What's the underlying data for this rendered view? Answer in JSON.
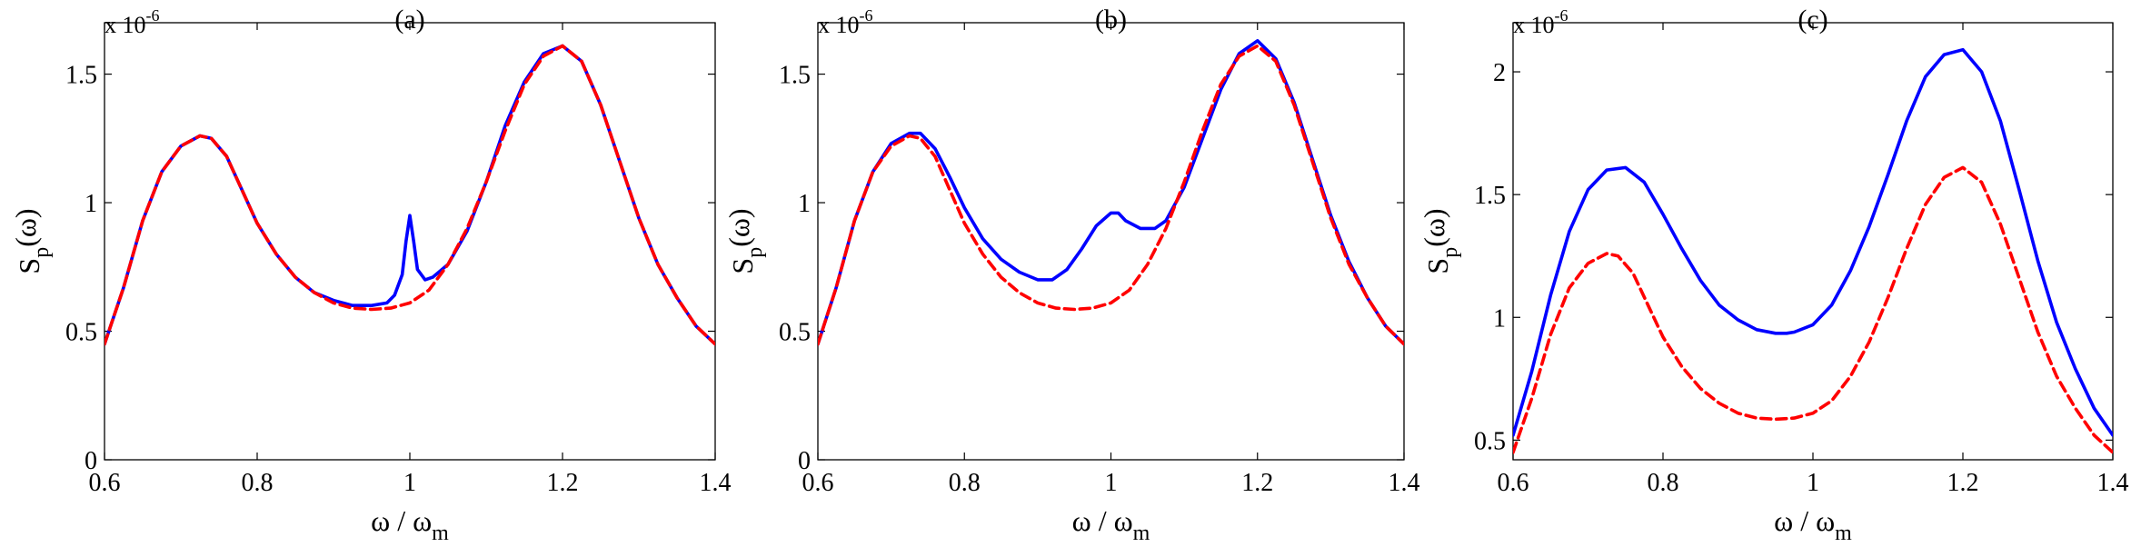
{
  "chart_data": [
    {
      "type": "line",
      "title": "(a)",
      "exponent_label": "x 10",
      "exponent_power": "-6",
      "xlabel_main": "ω / ω",
      "xlabel_sub": "m",
      "ylabel_main": "S",
      "ylabel_sub": "p",
      "ylabel_arg": "(ω)",
      "xlim": [
        0.6,
        1.4
      ],
      "ylim": [
        0,
        1.7
      ],
      "xticks": [
        0.6,
        0.8,
        1,
        1.2,
        1.4
      ],
      "xtick_labels": [
        "0.6",
        "0.8",
        "1",
        "1.2",
        "1.4"
      ],
      "yticks": [
        0,
        0.5,
        1,
        1.5
      ],
      "ytick_labels": [
        "0",
        "0.5",
        "1",
        "1.5"
      ],
      "grid": false,
      "series": [
        {
          "color": "#0000ff",
          "style": "solid",
          "x": [
            0.6,
            0.625,
            0.65,
            0.675,
            0.7,
            0.725,
            0.74,
            0.76,
            0.78,
            0.8,
            0.825,
            0.85,
            0.875,
            0.9,
            0.925,
            0.95,
            0.97,
            0.98,
            0.99,
            0.995,
            1.0,
            1.005,
            1.01,
            1.02,
            1.03,
            1.05,
            1.075,
            1.1,
            1.125,
            1.15,
            1.175,
            1.2,
            1.225,
            1.25,
            1.275,
            1.3,
            1.325,
            1.35,
            1.375,
            1.4
          ],
          "y": [
            0.45,
            0.67,
            0.93,
            1.12,
            1.22,
            1.26,
            1.25,
            1.18,
            1.05,
            0.92,
            0.8,
            0.71,
            0.65,
            0.62,
            0.6,
            0.6,
            0.61,
            0.64,
            0.72,
            0.85,
            0.95,
            0.85,
            0.74,
            0.7,
            0.71,
            0.76,
            0.89,
            1.08,
            1.3,
            1.47,
            1.58,
            1.61,
            1.55,
            1.38,
            1.16,
            0.94,
            0.76,
            0.63,
            0.52,
            0.45
          ]
        },
        {
          "color": "#ff0000",
          "style": "dashed",
          "x": [
            0.6,
            0.625,
            0.65,
            0.675,
            0.7,
            0.725,
            0.74,
            0.76,
            0.78,
            0.8,
            0.825,
            0.85,
            0.875,
            0.9,
            0.925,
            0.95,
            0.975,
            1.0,
            1.025,
            1.05,
            1.075,
            1.1,
            1.125,
            1.15,
            1.175,
            1.2,
            1.225,
            1.25,
            1.275,
            1.3,
            1.325,
            1.35,
            1.375,
            1.4
          ],
          "y": [
            0.45,
            0.67,
            0.93,
            1.12,
            1.22,
            1.26,
            1.25,
            1.18,
            1.05,
            0.92,
            0.8,
            0.71,
            0.65,
            0.61,
            0.59,
            0.585,
            0.59,
            0.61,
            0.66,
            0.76,
            0.9,
            1.08,
            1.28,
            1.46,
            1.57,
            1.61,
            1.55,
            1.38,
            1.16,
            0.94,
            0.76,
            0.63,
            0.52,
            0.45
          ]
        }
      ]
    },
    {
      "type": "line",
      "title": "(b)",
      "exponent_label": "x 10",
      "exponent_power": "-6",
      "xlabel_main": "ω / ω",
      "xlabel_sub": "m",
      "ylabel_main": "S",
      "ylabel_sub": "p",
      "ylabel_arg": "(ω)",
      "xlim": [
        0.6,
        1.4
      ],
      "ylim": [
        0,
        1.7
      ],
      "xticks": [
        0.6,
        0.8,
        1,
        1.2,
        1.4
      ],
      "xtick_labels": [
        "0.6",
        "0.8",
        "1",
        "1.2",
        "1.4"
      ],
      "yticks": [
        0,
        0.5,
        1,
        1.5
      ],
      "ytick_labels": [
        "0",
        "0.5",
        "1",
        "1.5"
      ],
      "grid": false,
      "series": [
        {
          "color": "#0000ff",
          "style": "solid",
          "x": [
            0.6,
            0.625,
            0.65,
            0.675,
            0.7,
            0.725,
            0.74,
            0.76,
            0.78,
            0.8,
            0.825,
            0.85,
            0.875,
            0.9,
            0.92,
            0.94,
            0.96,
            0.98,
            1.0,
            1.01,
            1.02,
            1.04,
            1.06,
            1.075,
            1.1,
            1.125,
            1.15,
            1.175,
            1.2,
            1.225,
            1.25,
            1.275,
            1.3,
            1.325,
            1.35,
            1.375,
            1.4
          ],
          "y": [
            0.45,
            0.67,
            0.93,
            1.12,
            1.23,
            1.27,
            1.27,
            1.21,
            1.1,
            0.98,
            0.86,
            0.78,
            0.73,
            0.7,
            0.7,
            0.74,
            0.82,
            0.91,
            0.96,
            0.96,
            0.93,
            0.9,
            0.9,
            0.93,
            1.06,
            1.25,
            1.44,
            1.58,
            1.63,
            1.56,
            1.39,
            1.17,
            0.95,
            0.77,
            0.63,
            0.52,
            0.45
          ]
        },
        {
          "color": "#ff0000",
          "style": "dashed",
          "x": [
            0.6,
            0.625,
            0.65,
            0.675,
            0.7,
            0.725,
            0.74,
            0.76,
            0.78,
            0.8,
            0.825,
            0.85,
            0.875,
            0.9,
            0.925,
            0.95,
            0.975,
            1.0,
            1.025,
            1.05,
            1.075,
            1.1,
            1.125,
            1.15,
            1.175,
            1.2,
            1.225,
            1.25,
            1.275,
            1.3,
            1.325,
            1.35,
            1.375,
            1.4
          ],
          "y": [
            0.45,
            0.67,
            0.93,
            1.12,
            1.22,
            1.26,
            1.25,
            1.18,
            1.05,
            0.92,
            0.8,
            0.71,
            0.65,
            0.61,
            0.59,
            0.585,
            0.59,
            0.61,
            0.66,
            0.76,
            0.9,
            1.08,
            1.28,
            1.46,
            1.57,
            1.61,
            1.55,
            1.38,
            1.16,
            0.94,
            0.76,
            0.63,
            0.52,
            0.45
          ]
        }
      ]
    },
    {
      "type": "line",
      "title": "(c)",
      "exponent_label": "x 10",
      "exponent_power": "-6",
      "xlabel_main": "ω / ω",
      "xlabel_sub": "m",
      "ylabel_main": "S",
      "ylabel_sub": "p",
      "ylabel_arg": "(ω)",
      "xlim": [
        0.6,
        1.4
      ],
      "ylim": [
        0.42,
        2.2
      ],
      "xticks": [
        0.6,
        0.8,
        1,
        1.2,
        1.4
      ],
      "xtick_labels": [
        "0.6",
        "0.8",
        "1",
        "1.2",
        "1.4"
      ],
      "yticks": [
        0.5,
        1,
        1.5,
        2
      ],
      "ytick_labels": [
        "0.5",
        "1",
        "1.5",
        "2"
      ],
      "grid": false,
      "series": [
        {
          "color": "#0000ff",
          "style": "solid",
          "x": [
            0.6,
            0.625,
            0.65,
            0.675,
            0.7,
            0.725,
            0.75,
            0.775,
            0.8,
            0.825,
            0.85,
            0.875,
            0.9,
            0.925,
            0.95,
            0.965,
            0.975,
            1.0,
            1.025,
            1.05,
            1.075,
            1.1,
            1.125,
            1.15,
            1.175,
            1.2,
            1.225,
            1.25,
            1.275,
            1.3,
            1.325,
            1.35,
            1.375,
            1.4
          ],
          "y": [
            0.52,
            0.78,
            1.09,
            1.35,
            1.52,
            1.6,
            1.61,
            1.55,
            1.42,
            1.28,
            1.15,
            1.05,
            0.99,
            0.95,
            0.935,
            0.935,
            0.94,
            0.97,
            1.05,
            1.19,
            1.37,
            1.58,
            1.8,
            1.98,
            2.07,
            2.09,
            2.0,
            1.8,
            1.52,
            1.23,
            0.98,
            0.79,
            0.63,
            0.52
          ]
        },
        {
          "color": "#ff0000",
          "style": "dashed",
          "x": [
            0.6,
            0.625,
            0.65,
            0.675,
            0.7,
            0.725,
            0.74,
            0.76,
            0.78,
            0.8,
            0.825,
            0.85,
            0.875,
            0.9,
            0.925,
            0.95,
            0.975,
            1.0,
            1.025,
            1.05,
            1.075,
            1.1,
            1.125,
            1.15,
            1.175,
            1.2,
            1.225,
            1.25,
            1.275,
            1.3,
            1.325,
            1.35,
            1.375,
            1.4
          ],
          "y": [
            0.45,
            0.67,
            0.93,
            1.12,
            1.22,
            1.26,
            1.25,
            1.18,
            1.05,
            0.92,
            0.8,
            0.71,
            0.65,
            0.61,
            0.59,
            0.585,
            0.59,
            0.61,
            0.66,
            0.76,
            0.9,
            1.08,
            1.28,
            1.46,
            1.57,
            1.61,
            1.55,
            1.38,
            1.16,
            0.94,
            0.76,
            0.63,
            0.52,
            0.45
          ]
        }
      ]
    }
  ]
}
